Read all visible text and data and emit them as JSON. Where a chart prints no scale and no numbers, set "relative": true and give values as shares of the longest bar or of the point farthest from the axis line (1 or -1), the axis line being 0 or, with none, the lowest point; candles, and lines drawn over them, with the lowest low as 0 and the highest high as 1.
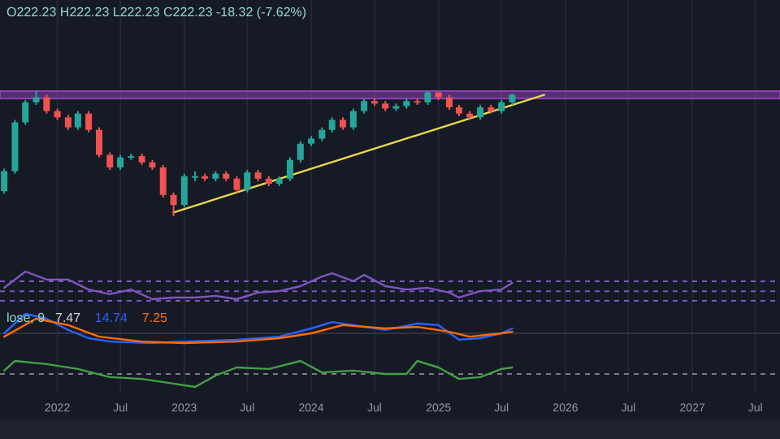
{
  "chart_data": [
    {
      "type": "candlestick",
      "title": "O222.23 H222.23 L222.23 C222.23 -18.32 (-7.62%)",
      "relative": true,
      "grid": "x",
      "tick_labels": false,
      "xlim": [
        "2021-07-20",
        "2027-09-10"
      ],
      "xticks": [
        {
          "value": "2022-01",
          "label": null
        },
        {
          "value": "2022-07",
          "label": null
        },
        {
          "value": "2023-01",
          "label": null
        },
        {
          "value": "2023-07",
          "label": null
        },
        {
          "value": "2024-01",
          "label": null
        },
        {
          "value": "2024-07",
          "label": null
        },
        {
          "value": "2025-01",
          "label": null
        },
        {
          "value": "2025-07",
          "label": null
        },
        {
          "value": "2026-01",
          "label": null
        },
        {
          "value": "2026-07",
          "label": null
        },
        {
          "value": "2027-01",
          "label": null
        },
        {
          "value": "2027-07",
          "label": null
        }
      ],
      "x": [
        "2021-08",
        "2021-09",
        "2021-10",
        "2021-11",
        "2021-12",
        "2022-01",
        "2022-02",
        "2022-03",
        "2022-04",
        "2022-05",
        "2022-06",
        "2022-07",
        "2022-08",
        "2022-09",
        "2022-10",
        "2022-11",
        "2022-12",
        "2023-01",
        "2023-02",
        "2023-03",
        "2023-04",
        "2023-05",
        "2023-06",
        "2023-07",
        "2023-08",
        "2023-09",
        "2023-10",
        "2023-11",
        "2023-12",
        "2024-01",
        "2024-02",
        "2024-03",
        "2024-04",
        "2024-05",
        "2024-06",
        "2024-07",
        "2024-08",
        "2024-09",
        "2024-10",
        "2024-11",
        "2024-12",
        "2025-01",
        "2025-02",
        "2025-03",
        "2025-04",
        "2025-05",
        "2025-06",
        "2025-07",
        "2025-08"
      ],
      "ohlc": [
        [
          0.2,
          0.38,
          0.18,
          0.36
        ],
        [
          0.36,
          0.77,
          0.34,
          0.75
        ],
        [
          0.75,
          0.93,
          0.73,
          0.91
        ],
        [
          0.91,
          1.0,
          0.89,
          0.95
        ],
        [
          0.95,
          0.97,
          0.82,
          0.84
        ],
        [
          0.84,
          0.86,
          0.77,
          0.79
        ],
        [
          0.79,
          0.81,
          0.69,
          0.71
        ],
        [
          0.71,
          0.84,
          0.69,
          0.82
        ],
        [
          0.82,
          0.84,
          0.67,
          0.69
        ],
        [
          0.69,
          0.71,
          0.47,
          0.49
        ],
        [
          0.49,
          0.51,
          0.37,
          0.39
        ],
        [
          0.39,
          0.49,
          0.37,
          0.47
        ],
        [
          0.47,
          0.5,
          0.45,
          0.48
        ],
        [
          0.48,
          0.5,
          0.41,
          0.43
        ],
        [
          0.43,
          0.45,
          0.37,
          0.39
        ],
        [
          0.39,
          0.41,
          0.15,
          0.17
        ],
        [
          0.17,
          0.19,
          0.0,
          0.09
        ],
        [
          0.09,
          0.34,
          0.07,
          0.32
        ],
        [
          0.32,
          0.36,
          0.28,
          0.32
        ],
        [
          0.32,
          0.34,
          0.28,
          0.3
        ],
        [
          0.3,
          0.36,
          0.28,
          0.34
        ],
        [
          0.34,
          0.36,
          0.28,
          0.3
        ],
        [
          0.3,
          0.32,
          0.19,
          0.21
        ],
        [
          0.21,
          0.37,
          0.19,
          0.35
        ],
        [
          0.35,
          0.37,
          0.28,
          0.3
        ],
        [
          0.3,
          0.32,
          0.24,
          0.26
        ],
        [
          0.26,
          0.32,
          0.24,
          0.3
        ],
        [
          0.3,
          0.47,
          0.28,
          0.45
        ],
        [
          0.45,
          0.6,
          0.43,
          0.58
        ],
        [
          0.58,
          0.64,
          0.56,
          0.62
        ],
        [
          0.62,
          0.71,
          0.6,
          0.69
        ],
        [
          0.69,
          0.79,
          0.67,
          0.77
        ],
        [
          0.77,
          0.79,
          0.69,
          0.71
        ],
        [
          0.71,
          0.86,
          0.69,
          0.84
        ],
        [
          0.84,
          0.94,
          0.82,
          0.92
        ],
        [
          0.92,
          0.94,
          0.88,
          0.9
        ],
        [
          0.9,
          0.92,
          0.84,
          0.86
        ],
        [
          0.86,
          0.9,
          0.84,
          0.88
        ],
        [
          0.88,
          0.94,
          0.86,
          0.92
        ],
        [
          0.92,
          0.94,
          0.89,
          0.91
        ],
        [
          0.91,
          1.0,
          0.89,
          0.99
        ],
        [
          0.99,
          0.99,
          0.93,
          0.95
        ],
        [
          0.95,
          0.97,
          0.85,
          0.87
        ],
        [
          0.87,
          0.89,
          0.8,
          0.82
        ],
        [
          0.82,
          0.84,
          0.77,
          0.79
        ],
        [
          0.79,
          0.89,
          0.77,
          0.87
        ],
        [
          0.87,
          0.89,
          0.82,
          0.84
        ],
        [
          0.84,
          0.93,
          0.82,
          0.91
        ],
        [
          0.91,
          0.98,
          0.89,
          0.97
        ]
      ],
      "colors": [
        "#26a69a",
        "#26a69a",
        "#26a69a",
        "#26a69a",
        "#ef5350",
        "#ef5350",
        "#ef5350",
        "#26a69a",
        "#ef5350",
        "#ef5350",
        "#ef5350",
        "#26a69a",
        "#26a69a",
        "#ef5350",
        "#ef5350",
        "#ef5350",
        "#ef5350",
        "#26a69a",
        "#26a69a",
        "#ef5350",
        "#26a69a",
        "#ef5350",
        "#ef5350",
        "#26a69a",
        "#ef5350",
        "#ef5350",
        "#26a69a",
        "#26a69a",
        "#26a69a",
        "#26a69a",
        "#26a69a",
        "#26a69a",
        "#ef5350",
        "#26a69a",
        "#26a69a",
        "#ef5350",
        "#ef5350",
        "#26a69a",
        "#26a69a",
        "#ef5350",
        "#26a69a",
        "#ef5350",
        "#ef5350",
        "#ef5350",
        "#ef5350",
        "#26a69a",
        "#ef5350",
        "#26a69a",
        "#26a69a"
      ],
      "bands": [
        {
          "axis": "y",
          "from": 0.94,
          "to": 1.0,
          "color": "#8e3fb5"
        }
      ],
      "series": [
        {
          "type": "line",
          "color": "#e8d84a",
          "x": [
            "2022-12",
            "2025-11"
          ],
          "values": [
            0.03,
            0.97
          ]
        }
      ]
    },
    {
      "type": "line",
      "relative": true,
      "grid": "x",
      "tick_labels": false,
      "xlim": [
        "2021-07-20",
        "2027-09-10"
      ],
      "xticks": [
        {
          "value": "2022-01",
          "label": null
        },
        {
          "value": "2022-07",
          "label": null
        },
        {
          "value": "2023-01",
          "label": null
        },
        {
          "value": "2023-07",
          "label": null
        },
        {
          "value": "2024-01",
          "label": null
        },
        {
          "value": "2024-07",
          "label": null
        },
        {
          "value": "2025-01",
          "label": null
        },
        {
          "value": "2025-07",
          "label": null
        },
        {
          "value": "2026-01",
          "label": null
        },
        {
          "value": "2026-07",
          "label": null
        },
        {
          "value": "2027-01",
          "label": null
        },
        {
          "value": "2027-07",
          "label": null
        }
      ],
      "ref_lines": [
        {
          "axis": "y",
          "value": 0.65,
          "color": "#7e57c2",
          "line_style": "dashed"
        },
        {
          "axis": "y",
          "value": 0.29,
          "color": "#7e57c2",
          "line_style": "dashed"
        },
        {
          "axis": "y",
          "value": -0.06,
          "color": "#7e57c2",
          "line_style": "dashed"
        }
      ],
      "series": [
        {
          "color": "#7e57c2",
          "x": [
            "2021-08",
            "2021-10",
            "2021-12",
            "2022-02",
            "2022-04",
            "2022-06",
            "2022-08",
            "2022-10",
            "2022-12",
            "2023-02",
            "2023-04",
            "2023-06",
            "2023-08",
            "2023-10",
            "2023-12",
            "2024-02",
            "2024-03",
            "2024-05",
            "2024-06",
            "2024-08",
            "2024-10",
            "2024-12",
            "2025-02",
            "2025-03",
            "2025-05",
            "2025-07",
            "2025-08"
          ],
          "values": [
            0.41,
            1,
            0.71,
            0.71,
            0.35,
            0.18,
            0.35,
            0,
            0.06,
            0.06,
            0.12,
            0,
            0.24,
            0.29,
            0.47,
            0.82,
            0.94,
            0.65,
            0.88,
            0.47,
            0.35,
            0.41,
            0.24,
            0.06,
            0.29,
            0.35,
            0.59
          ]
        }
      ]
    },
    {
      "type": "line",
      "relative": true,
      "grid": "x",
      "tick_labels": false,
      "title": "lose, 9",
      "annotations": [
        "7.47",
        "14.74",
        "7.25"
      ],
      "xlim": [
        "2021-07-20",
        "2027-09-10"
      ],
      "xticks": [
        {
          "value": "2022-01",
          "label": null
        },
        {
          "value": "2022-07",
          "label": null
        },
        {
          "value": "2023-01",
          "label": null
        },
        {
          "value": "2023-07",
          "label": null
        },
        {
          "value": "2024-01",
          "label": null
        },
        {
          "value": "2024-07",
          "label": null
        },
        {
          "value": "2025-01",
          "label": null
        },
        {
          "value": "2025-07",
          "label": null
        },
        {
          "value": "2026-01",
          "label": null
        },
        {
          "value": "2026-07",
          "label": null
        },
        {
          "value": "2027-01",
          "label": null
        },
        {
          "value": "2027-07",
          "label": null
        }
      ],
      "series": [
        {
          "color": "#2962ff",
          "x": [
            "2021-08",
            "2021-10",
            "2021-12",
            "2022-02",
            "2022-04",
            "2022-06",
            "2022-10",
            "2023-01",
            "2023-06",
            "2023-10",
            "2024-01",
            "2024-03",
            "2024-05",
            "2024-08",
            "2024-11",
            "2025-01",
            "2025-03",
            "2025-05",
            "2025-07",
            "2025-08"
          ],
          "values": [
            0,
            1,
            0.75,
            0.17,
            -0.25,
            -0.42,
            -0.5,
            -0.42,
            -0.33,
            -0.17,
            0.25,
            0.58,
            0.42,
            0.17,
            0.5,
            0.42,
            -0.33,
            -0.25,
            0,
            0.25
          ]
        },
        {
          "color": "#ff6d00",
          "x": [
            "2021-08",
            "2021-11",
            "2022-02",
            "2022-05",
            "2022-09",
            "2023-01",
            "2023-06",
            "2023-10",
            "2024-01",
            "2024-04",
            "2024-08",
            "2024-11",
            "2025-02",
            "2025-04",
            "2025-07",
            "2025-08"
          ],
          "values": [
            -0.17,
            0.75,
            0.42,
            -0.17,
            -0.42,
            -0.5,
            -0.42,
            -0.25,
            0,
            0.42,
            0.25,
            0.33,
            0.08,
            -0.17,
            0,
            0.08
          ]
        }
      ]
    },
    {
      "type": "line",
      "relative": true,
      "grid": "x",
      "tick_labels": "x",
      "xlim": [
        "2021-07-20",
        "2027-09-10"
      ],
      "xticks": [
        {
          "value": "2022-01",
          "label": "2022"
        },
        {
          "value": "2022-07",
          "label": "Jul"
        },
        {
          "value": "2023-01",
          "label": "2023"
        },
        {
          "value": "2023-07",
          "label": "Jul"
        },
        {
          "value": "2024-01",
          "label": "2024"
        },
        {
          "value": "2024-07",
          "label": "Jul"
        },
        {
          "value": "2025-01",
          "label": "2025"
        },
        {
          "value": "2025-07",
          "label": "Jul"
        },
        {
          "value": "2026-01",
          "label": "2026"
        },
        {
          "value": "2026-07",
          "label": "Jul"
        },
        {
          "value": "2027-01",
          "label": "2027"
        },
        {
          "value": "2027-07",
          "label": "Jul"
        }
      ],
      "ref_lines": [
        {
          "axis": "y",
          "value": 0.5,
          "color": "#787b86",
          "line_style": "dashed"
        }
      ],
      "series": [
        {
          "color": "#43a047",
          "x": [
            "2021-08",
            "2021-09",
            "2021-12",
            "2022-03",
            "2022-06",
            "2022-09",
            "2022-12",
            "2023-02",
            "2023-04",
            "2023-06",
            "2023-09",
            "2023-12",
            "2024-02",
            "2024-05",
            "2024-08",
            "2024-10",
            "2024-11",
            "2025-01",
            "2025-03",
            "2025-05",
            "2025-07",
            "2025-08"
          ],
          "values": [
            0.63,
            1,
            0.88,
            0.69,
            0.38,
            0.31,
            0.13,
            0,
            0.44,
            0.75,
            0.69,
            1,
            0.56,
            0.63,
            0.5,
            0.5,
            1,
            0.75,
            0.31,
            0.38,
            0.69,
            0.75
          ]
        }
      ]
    }
  ]
}
